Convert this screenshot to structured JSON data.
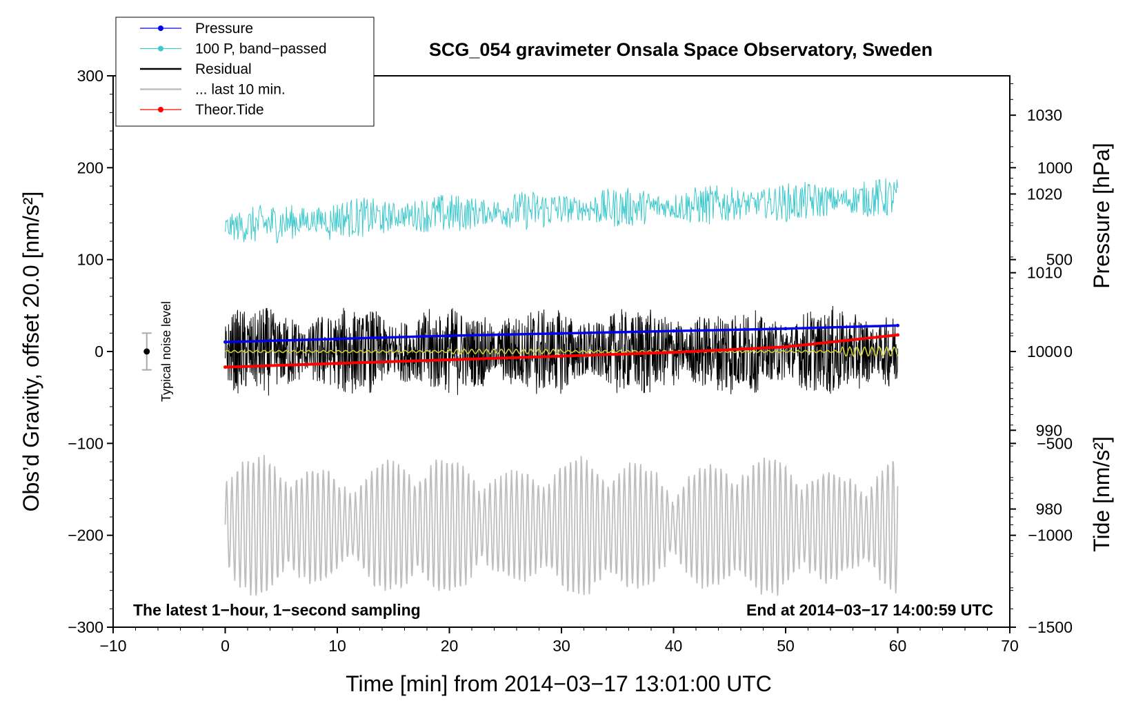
{
  "chart_data": {
    "type": "line",
    "title": "SCG_054 gravimeter Onsala Space Observatory, Sweden",
    "xlabel": "Time [min] from 2014−03−17 13:01:00 UTC",
    "ylabel": "Obs’d Gravity, offset 20.0 [nm/s²]",
    "ylabel_right_top": "Pressure [hPa]",
    "ylabel_right_bottom": "Tide [nm/s²]",
    "xlim": [
      -10,
      70
    ],
    "ylim": [
      -300,
      300
    ],
    "pressure_axis_range": [
      965,
      1035
    ],
    "tide_axis_range": [
      -1500,
      1500
    ],
    "x_ticks": [
      "−10",
      "0",
      "10",
      "20",
      "30",
      "40",
      "50",
      "60",
      "70"
    ],
    "y_ticks": [
      "300",
      "200",
      "100",
      "0",
      "−100",
      "−200",
      "−300"
    ],
    "pressure_ticks": [
      "1030",
      "1020",
      "1010",
      "1000",
      "990",
      "980"
    ],
    "tide_ticks": [
      "1000",
      "500",
      "0",
      "−500",
      "−1000",
      "−1500"
    ],
    "legend": [
      {
        "label": "Pressure",
        "color": "#0000ee",
        "marker": true
      },
      {
        "label": "100 P, band−passed",
        "color": "#3cc8cc",
        "marker": true
      },
      {
        "label": "Residual",
        "color": "#000000",
        "marker": false
      },
      {
        "label": "... last 10 min.",
        "color": "#bebebe",
        "marker": false
      },
      {
        "label": "Theor.Tide",
        "color": "#ff0000",
        "marker": true
      }
    ],
    "annotations": {
      "left": "The latest 1−hour, 1−second sampling",
      "right": "End at 2014−03−17 14:00:59 UTC",
      "noise": "Typical noise level"
    },
    "noise_bar": {
      "x": -7,
      "center": 0,
      "half_range": 20
    },
    "series": [
      {
        "name": "Pressure",
        "color": "#0000ee",
        "axis": "pressure_hPa",
        "x": [
          0,
          10,
          20,
          30,
          40,
          50,
          60
        ],
        "values": [
          1001.2,
          1001.6,
          1002.0,
          1002.3,
          1002.6,
          1002.9,
          1003.3
        ]
      },
      {
        "name": "100 P, band−passed",
        "color": "#3cc8cc",
        "axis": "gravity",
        "x": [
          0,
          10,
          20,
          30,
          40,
          50,
          60
        ],
        "values": [
          135,
          145,
          150,
          155,
          158,
          162,
          168
        ]
      },
      {
        "name": "Residual",
        "color": "#000000",
        "axis": "gravity",
        "x": [
          0,
          10,
          20,
          30,
          40,
          50,
          60
        ],
        "values": [
          0,
          0,
          0,
          0,
          0,
          0,
          0
        ]
      },
      {
        "name": "... last 10 min.",
        "color": "#bebebe",
        "axis": "gravity",
        "x": [
          0,
          10,
          20,
          30,
          40,
          50,
          60
        ],
        "values": [
          -190,
          -190,
          -190,
          -190,
          -190,
          -190,
          -190
        ]
      },
      {
        "name": "Theor.Tide",
        "color": "#ff0000",
        "axis": "tide_nm_s2",
        "x": [
          0,
          10,
          20,
          30,
          40,
          50,
          60
        ],
        "values": [
          -85,
          -65,
          -45,
          -25,
          -5,
          25,
          90
        ]
      }
    ]
  }
}
